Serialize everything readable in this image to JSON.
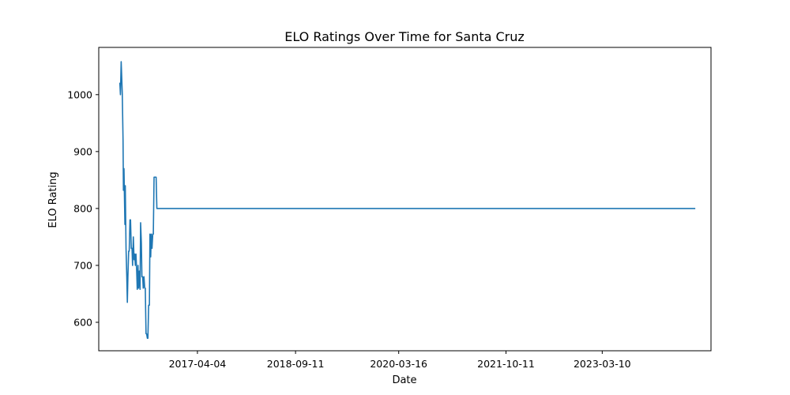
{
  "chart_data": {
    "type": "line",
    "title": "ELO Ratings Over Time for Santa Cruz",
    "xlabel": "Date",
    "ylabel": "ELO Rating",
    "x_ticks": [
      "2017-04-04",
      "2018-09-11",
      "2020-03-16",
      "2021-10-11",
      "2023-03-10"
    ],
    "y_ticks": [
      600,
      700,
      800,
      900,
      1000
    ],
    "xlim": [
      "2015-10-24",
      "2024-10-12"
    ],
    "ylim": [
      550,
      1083
    ],
    "grid": false,
    "line_color": "#1f77b4",
    "series": [
      {
        "x": [
          "2016-02-11",
          "2016-02-14",
          "2016-02-17",
          "2016-02-21",
          "2016-02-24",
          "2016-02-27",
          "2016-03-02",
          "2016-03-04",
          "2016-03-07",
          "2016-03-09",
          "2016-03-12",
          "2016-03-14",
          "2016-03-18",
          "2016-03-22",
          "2016-03-25",
          "2016-03-28",
          "2016-04-01",
          "2016-04-04",
          "2016-04-08",
          "2016-04-11",
          "2016-04-15",
          "2016-04-19",
          "2016-04-22",
          "2016-04-26",
          "2016-04-30",
          "2016-05-03",
          "2016-05-07",
          "2016-05-10",
          "2016-05-14",
          "2016-05-17",
          "2016-05-21",
          "2016-05-24",
          "2016-05-28",
          "2016-06-01",
          "2016-06-04",
          "2016-06-08",
          "2016-06-11",
          "2016-06-15",
          "2016-06-18",
          "2016-06-22",
          "2016-06-26",
          "2016-06-29",
          "2016-07-03",
          "2016-07-06",
          "2016-07-10",
          "2016-07-13",
          "2016-07-17",
          "2016-07-21",
          "2016-07-24",
          "2016-07-28",
          "2016-07-31",
          "2016-08-04",
          "2016-08-08",
          "2016-08-11",
          "2016-08-15",
          "2016-08-19",
          "2016-08-22",
          "2016-08-26",
          "2016-08-30",
          "2016-09-02",
          "2016-09-06",
          "2016-09-10",
          "2016-09-13",
          "2016-09-17",
          "2016-09-21",
          "2016-09-24",
          "2016-09-28",
          "2016-10-02",
          "2016-10-05",
          "2016-10-09",
          "2016-10-13",
          "2016-10-16",
          "2016-10-20",
          "2016-10-24",
          "2016-10-27",
          "2016-10-31",
          "2016-11-04",
          "2016-11-08",
          "2016-11-12",
          "2016-11-16",
          "2016-11-20",
          "2016-11-24",
          "2016-11-28",
          "2016-12-02",
          "2016-12-06",
          "2016-12-10",
          "2016-12-14",
          "2016-12-18",
          "2016-12-22",
          "2016-12-26",
          "2016-12-30",
          "2017-01-03",
          "2017-01-07",
          "2017-01-11",
          "2017-01-15",
          "2017-01-19",
          "2024-07-20"
        ],
        "y": [
          1020,
          1020,
          1000,
          1058,
          1030,
          1000,
          920,
          832,
          870,
          830,
          772,
          840,
          730,
          680,
          635,
          680,
          725,
          725,
          780,
          780,
          730,
          730,
          700,
          750,
          710,
          720,
          700,
          720,
          690,
          658,
          700,
          660,
          690,
          658,
          775,
          740,
          680,
          680,
          660,
          680,
          660,
          660,
          580,
          580,
          572,
          572,
          630,
          630,
          755,
          715,
          755,
          730,
          755,
          755,
          855,
          855,
          855,
          855,
          800,
          800,
          800,
          800,
          800,
          800,
          800,
          800,
          800,
          800,
          800,
          800,
          800,
          800,
          800,
          800,
          800,
          800,
          800,
          800,
          800,
          800,
          800,
          800,
          800,
          800,
          800,
          800,
          800,
          800,
          800,
          800,
          800,
          800,
          800,
          800,
          800,
          800,
          800
        ]
      }
    ]
  }
}
